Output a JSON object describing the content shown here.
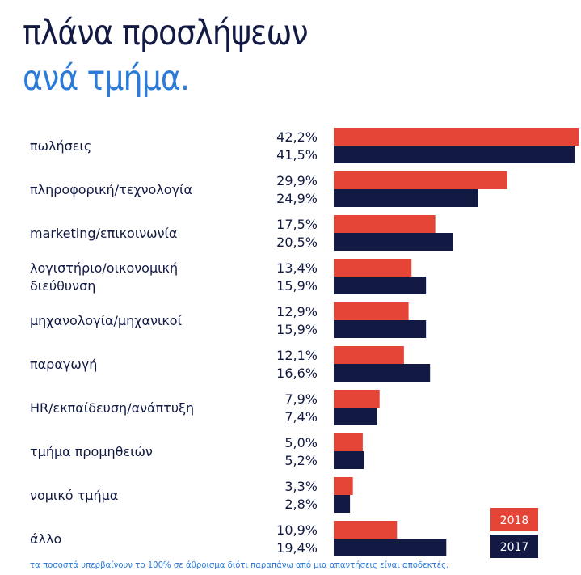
{
  "title_line1": "πλάνα προσλήψεων",
  "title_line2": "ανά τμήμα.",
  "footnote": "τα ποσοστά υπερβαίνουν το 100% σε άθροισμα διότι παραπάνω από μια απαντήσεις είναι αποδεκτές.",
  "colors": {
    "2018": "#e54537",
    "2017": "#121a44",
    "title": "#121a44",
    "subtitle": "#2b7bd8"
  },
  "chart_data": {
    "type": "bar",
    "orientation": "horizontal",
    "categories": [
      [
        "πωλήσεις"
      ],
      [
        "πληροφορική/τεχνολογία"
      ],
      [
        "marketing/επικοινωνία"
      ],
      [
        "λογιστήριο/οικονομική",
        "διεύθυνση"
      ],
      [
        "μηχανολογία/μηχανικοί"
      ],
      [
        "παραγωγή"
      ],
      [
        "HR/εκπαίδευση/ανάπτυξη"
      ],
      [
        "τμήμα προμηθειών"
      ],
      [
        "νομικό τμήμα"
      ],
      [
        "άλλο"
      ]
    ],
    "series": [
      {
        "name": "2018",
        "values": [
          42.2,
          29.9,
          17.5,
          13.4,
          12.9,
          12.1,
          7.9,
          5.0,
          3.3,
          10.9
        ],
        "labels": [
          "42,2%",
          "29,9%",
          "17,5%",
          "13,4%",
          "12,9%",
          "12,1%",
          "7,9%",
          "5,0%",
          "3,3%",
          "10,9%"
        ]
      },
      {
        "name": "2017",
        "values": [
          41.5,
          24.9,
          20.5,
          15.9,
          15.9,
          16.6,
          7.4,
          5.2,
          2.8,
          19.4
        ],
        "labels": [
          "41,5%",
          "24,9%",
          "20,5%",
          "15,9%",
          "15,9%",
          "16,6%",
          "7,4%",
          "5,2%",
          "2,8%",
          "19,4%"
        ]
      }
    ],
    "legend": "bottom-right",
    "grid": false
  }
}
